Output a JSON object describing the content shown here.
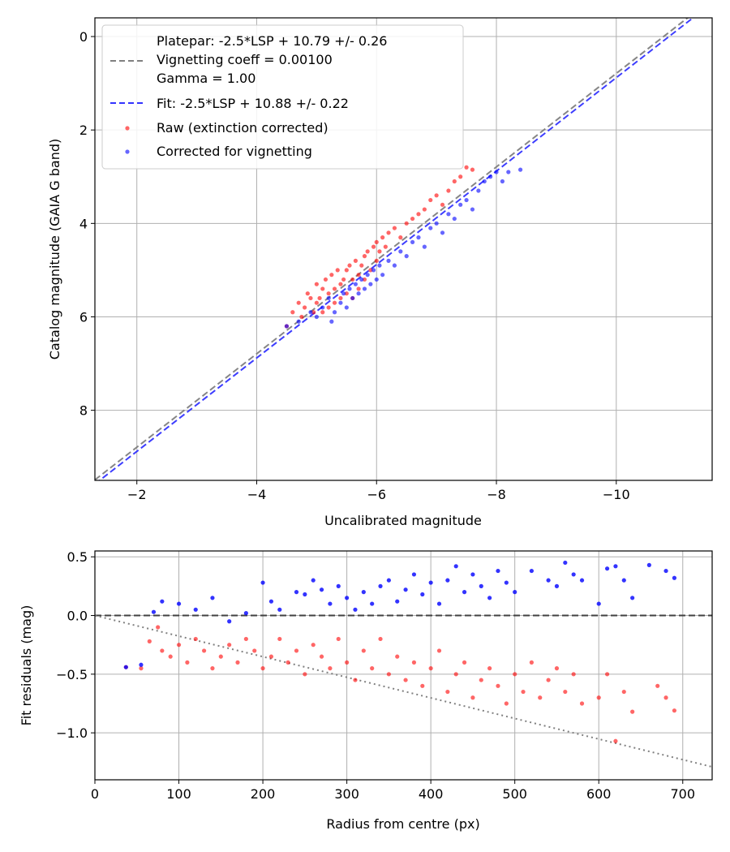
{
  "chart_data": [
    {
      "type": "scatter",
      "title": "",
      "xlabel": "Uncalibrated magnitude",
      "ylabel": "Catalog magnitude (GAIA G band)",
      "xlim": [
        -1.3,
        -11.6
      ],
      "ylim": [
        9.5,
        -0.4
      ],
      "x_ticks": [
        -2,
        -4,
        -6,
        -8,
        -10
      ],
      "x_tick_labels": [
        "−2",
        "−4",
        "−6",
        "−8",
        "−10"
      ],
      "y_ticks": [
        0,
        2,
        4,
        6,
        8
      ],
      "y_tick_labels": [
        "0",
        "2",
        "4",
        "6",
        "8"
      ],
      "grid": true,
      "legend_position": "top-left",
      "lines": [
        {
          "name": "platepar-line",
          "slope": 1.0,
          "intercept": 10.79,
          "color": "#808080",
          "dash": true
        },
        {
          "name": "fit-line",
          "slope": 1.0,
          "intercept": 10.88,
          "color": "#3333ff",
          "dash": true
        }
      ],
      "series": [
        {
          "name": "Raw (extinction corrected)",
          "color": "#ff0000",
          "points": [
            [
              -4.5,
              6.2
            ],
            [
              -4.6,
              5.9
            ],
            [
              -4.7,
              5.7
            ],
            [
              -4.75,
              6.0
            ],
            [
              -4.8,
              5.8
            ],
            [
              -4.85,
              5.5
            ],
            [
              -4.9,
              5.6
            ],
            [
              -4.95,
              5.9
            ],
            [
              -5.0,
              5.7
            ],
            [
              -5.0,
              5.3
            ],
            [
              -5.05,
              5.6
            ],
            [
              -5.1,
              5.4
            ],
            [
              -5.1,
              5.9
            ],
            [
              -5.15,
              5.2
            ],
            [
              -5.2,
              5.5
            ],
            [
              -5.2,
              5.8
            ],
            [
              -5.25,
              5.1
            ],
            [
              -5.3,
              5.4
            ],
            [
              -5.3,
              5.7
            ],
            [
              -5.35,
              5.0
            ],
            [
              -5.4,
              5.3
            ],
            [
              -5.4,
              5.6
            ],
            [
              -5.45,
              5.2
            ],
            [
              -5.5,
              5.0
            ],
            [
              -5.5,
              5.5
            ],
            [
              -5.55,
              4.9
            ],
            [
              -5.6,
              5.2
            ],
            [
              -5.6,
              5.6
            ],
            [
              -5.65,
              4.8
            ],
            [
              -5.7,
              5.1
            ],
            [
              -5.7,
              5.4
            ],
            [
              -5.75,
              4.9
            ],
            [
              -5.8,
              4.7
            ],
            [
              -5.8,
              5.2
            ],
            [
              -5.85,
              4.6
            ],
            [
              -5.9,
              5.0
            ],
            [
              -5.95,
              4.5
            ],
            [
              -6.0,
              4.8
            ],
            [
              -6.0,
              4.4
            ],
            [
              -6.05,
              4.6
            ],
            [
              -6.1,
              4.3
            ],
            [
              -6.15,
              4.5
            ],
            [
              -6.2,
              4.2
            ],
            [
              -6.3,
              4.1
            ],
            [
              -6.4,
              4.3
            ],
            [
              -6.5,
              4.0
            ],
            [
              -6.6,
              3.9
            ],
            [
              -6.7,
              3.8
            ],
            [
              -6.8,
              3.7
            ],
            [
              -6.9,
              3.5
            ],
            [
              -7.0,
              3.4
            ],
            [
              -7.1,
              3.6
            ],
            [
              -7.2,
              3.3
            ],
            [
              -7.3,
              3.1
            ],
            [
              -7.4,
              3.0
            ],
            [
              -7.5,
              2.8
            ],
            [
              -7.6,
              2.85
            ]
          ]
        },
        {
          "name": "Corrected for vignetting",
          "color": "#0000ff",
          "points": [
            [
              -4.5,
              6.2
            ],
            [
              -4.7,
              6.1
            ],
            [
              -4.9,
              5.9
            ],
            [
              -5.0,
              6.0
            ],
            [
              -5.1,
              5.8
            ],
            [
              -5.2,
              5.6
            ],
            [
              -5.25,
              6.1
            ],
            [
              -5.3,
              5.9
            ],
            [
              -5.4,
              5.7
            ],
            [
              -5.45,
              5.5
            ],
            [
              -5.5,
              5.8
            ],
            [
              -5.55,
              5.4
            ],
            [
              -5.6,
              5.6
            ],
            [
              -5.65,
              5.3
            ],
            [
              -5.7,
              5.5
            ],
            [
              -5.75,
              5.2
            ],
            [
              -5.8,
              5.4
            ],
            [
              -5.85,
              5.1
            ],
            [
              -5.9,
              5.3
            ],
            [
              -5.95,
              5.0
            ],
            [
              -6.0,
              5.2
            ],
            [
              -6.05,
              4.9
            ],
            [
              -6.1,
              5.1
            ],
            [
              -6.2,
              4.8
            ],
            [
              -6.3,
              4.9
            ],
            [
              -6.4,
              4.6
            ],
            [
              -6.5,
              4.7
            ],
            [
              -6.6,
              4.4
            ],
            [
              -6.7,
              4.3
            ],
            [
              -6.8,
              4.5
            ],
            [
              -6.9,
              4.1
            ],
            [
              -7.0,
              4.0
            ],
            [
              -7.1,
              4.2
            ],
            [
              -7.2,
              3.8
            ],
            [
              -7.3,
              3.9
            ],
            [
              -7.4,
              3.6
            ],
            [
              -7.5,
              3.5
            ],
            [
              -7.6,
              3.7
            ],
            [
              -7.7,
              3.3
            ],
            [
              -7.8,
              3.1
            ],
            [
              -7.9,
              3.0
            ],
            [
              -8.0,
              2.9
            ],
            [
              -8.1,
              3.1
            ],
            [
              -8.2,
              2.9
            ],
            [
              -8.4,
              2.85
            ]
          ]
        }
      ],
      "legend": [
        {
          "line1": "Platepar: -2.5*LSP + 10.79 +/- 0.26",
          "line2": "Vignetting coeff = 0.00100",
          "line3": "Gamma = 1.00"
        },
        {
          "label": "Fit: -2.5*LSP + 10.88 +/- 0.22"
        },
        {
          "label": "Raw (extinction corrected)"
        },
        {
          "label": "Corrected for vignetting"
        }
      ]
    },
    {
      "type": "scatter",
      "title": "",
      "xlabel": "Radius from centre (px)",
      "ylabel": "Fit residuals (mag)",
      "xlim": [
        0,
        735
      ],
      "ylim": [
        -1.4,
        0.55
      ],
      "x_ticks": [
        0,
        100,
        200,
        300,
        400,
        500,
        600,
        700
      ],
      "x_tick_labels": [
        "0",
        "100",
        "200",
        "300",
        "400",
        "500",
        "600",
        "700"
      ],
      "y_ticks": [
        0.5,
        0.0,
        -0.5,
        -1.0
      ],
      "y_tick_labels": [
        "0.5",
        "0.0",
        "−0.5",
        "−1.0"
      ],
      "grid": true,
      "reference_lines": [
        {
          "name": "zero-line",
          "y": 0.0,
          "color": "#404040",
          "dash": true
        },
        {
          "name": "vignetting-curve",
          "from": [
            0,
            0.0
          ],
          "to": [
            735,
            -1.29
          ],
          "color": "#808080",
          "dotted": true
        }
      ],
      "series": [
        {
          "name": "Raw (extinction corrected)",
          "color": "#ff0000",
          "points": [
            [
              37,
              -0.44
            ],
            [
              55,
              -0.45
            ],
            [
              65,
              -0.22
            ],
            [
              75,
              -0.1
            ],
            [
              80,
              -0.3
            ],
            [
              90,
              -0.35
            ],
            [
              100,
              -0.25
            ],
            [
              110,
              -0.4
            ],
            [
              120,
              -0.2
            ],
            [
              130,
              -0.3
            ],
            [
              140,
              -0.45
            ],
            [
              150,
              -0.35
            ],
            [
              160,
              -0.25
            ],
            [
              170,
              -0.4
            ],
            [
              180,
              -0.2
            ],
            [
              190,
              -0.3
            ],
            [
              200,
              -0.45
            ],
            [
              210,
              -0.35
            ],
            [
              220,
              -0.2
            ],
            [
              230,
              -0.4
            ],
            [
              240,
              -0.3
            ],
            [
              250,
              -0.5
            ],
            [
              260,
              -0.25
            ],
            [
              270,
              -0.35
            ],
            [
              280,
              -0.45
            ],
            [
              290,
              -0.2
            ],
            [
              300,
              -0.4
            ],
            [
              310,
              -0.55
            ],
            [
              320,
              -0.3
            ],
            [
              330,
              -0.45
            ],
            [
              340,
              -0.2
            ],
            [
              350,
              -0.5
            ],
            [
              360,
              -0.35
            ],
            [
              370,
              -0.55
            ],
            [
              380,
              -0.4
            ],
            [
              390,
              -0.6
            ],
            [
              400,
              -0.45
            ],
            [
              410,
              -0.3
            ],
            [
              420,
              -0.65
            ],
            [
              430,
              -0.5
            ],
            [
              440,
              -0.4
            ],
            [
              450,
              -0.7
            ],
            [
              460,
              -0.55
            ],
            [
              470,
              -0.45
            ],
            [
              480,
              -0.6
            ],
            [
              490,
              -0.75
            ],
            [
              500,
              -0.5
            ],
            [
              510,
              -0.65
            ],
            [
              520,
              -0.4
            ],
            [
              530,
              -0.7
            ],
            [
              540,
              -0.55
            ],
            [
              550,
              -0.45
            ],
            [
              560,
              -0.65
            ],
            [
              570,
              -0.5
            ],
            [
              580,
              -0.75
            ],
            [
              600,
              -0.7
            ],
            [
              610,
              -0.5
            ],
            [
              620,
              -1.07
            ],
            [
              630,
              -0.65
            ],
            [
              640,
              -0.82
            ],
            [
              670,
              -0.6
            ],
            [
              680,
              -0.7
            ],
            [
              690,
              -0.81
            ]
          ]
        },
        {
          "name": "Corrected for vignetting",
          "color": "#0000ff",
          "points": [
            [
              37,
              -0.44
            ],
            [
              55,
              -0.42
            ],
            [
              70,
              0.03
            ],
            [
              80,
              0.12
            ],
            [
              100,
              0.1
            ],
            [
              120,
              0.05
            ],
            [
              140,
              0.15
            ],
            [
              160,
              -0.05
            ],
            [
              180,
              0.02
            ],
            [
              200,
              0.28
            ],
            [
              210,
              0.12
            ],
            [
              220,
              0.05
            ],
            [
              240,
              0.2
            ],
            [
              250,
              0.18
            ],
            [
              260,
              0.3
            ],
            [
              270,
              0.22
            ],
            [
              280,
              0.1
            ],
            [
              290,
              0.25
            ],
            [
              300,
              0.15
            ],
            [
              310,
              0.05
            ],
            [
              320,
              0.2
            ],
            [
              330,
              0.1
            ],
            [
              340,
              0.25
            ],
            [
              350,
              0.3
            ],
            [
              360,
              0.12
            ],
            [
              370,
              0.22
            ],
            [
              380,
              0.35
            ],
            [
              390,
              0.18
            ],
            [
              400,
              0.28
            ],
            [
              410,
              0.1
            ],
            [
              420,
              0.3
            ],
            [
              430,
              0.42
            ],
            [
              440,
              0.2
            ],
            [
              450,
              0.35
            ],
            [
              460,
              0.25
            ],
            [
              470,
              0.15
            ],
            [
              480,
              0.38
            ],
            [
              490,
              0.28
            ],
            [
              500,
              0.2
            ],
            [
              520,
              0.38
            ],
            [
              540,
              0.3
            ],
            [
              550,
              0.25
            ],
            [
              560,
              0.45
            ],
            [
              570,
              0.35
            ],
            [
              580,
              0.3
            ],
            [
              600,
              0.1
            ],
            [
              610,
              0.4
            ],
            [
              620,
              0.42
            ],
            [
              630,
              0.3
            ],
            [
              640,
              0.15
            ],
            [
              660,
              0.43
            ],
            [
              680,
              0.38
            ],
            [
              690,
              0.32
            ]
          ]
        }
      ]
    }
  ]
}
